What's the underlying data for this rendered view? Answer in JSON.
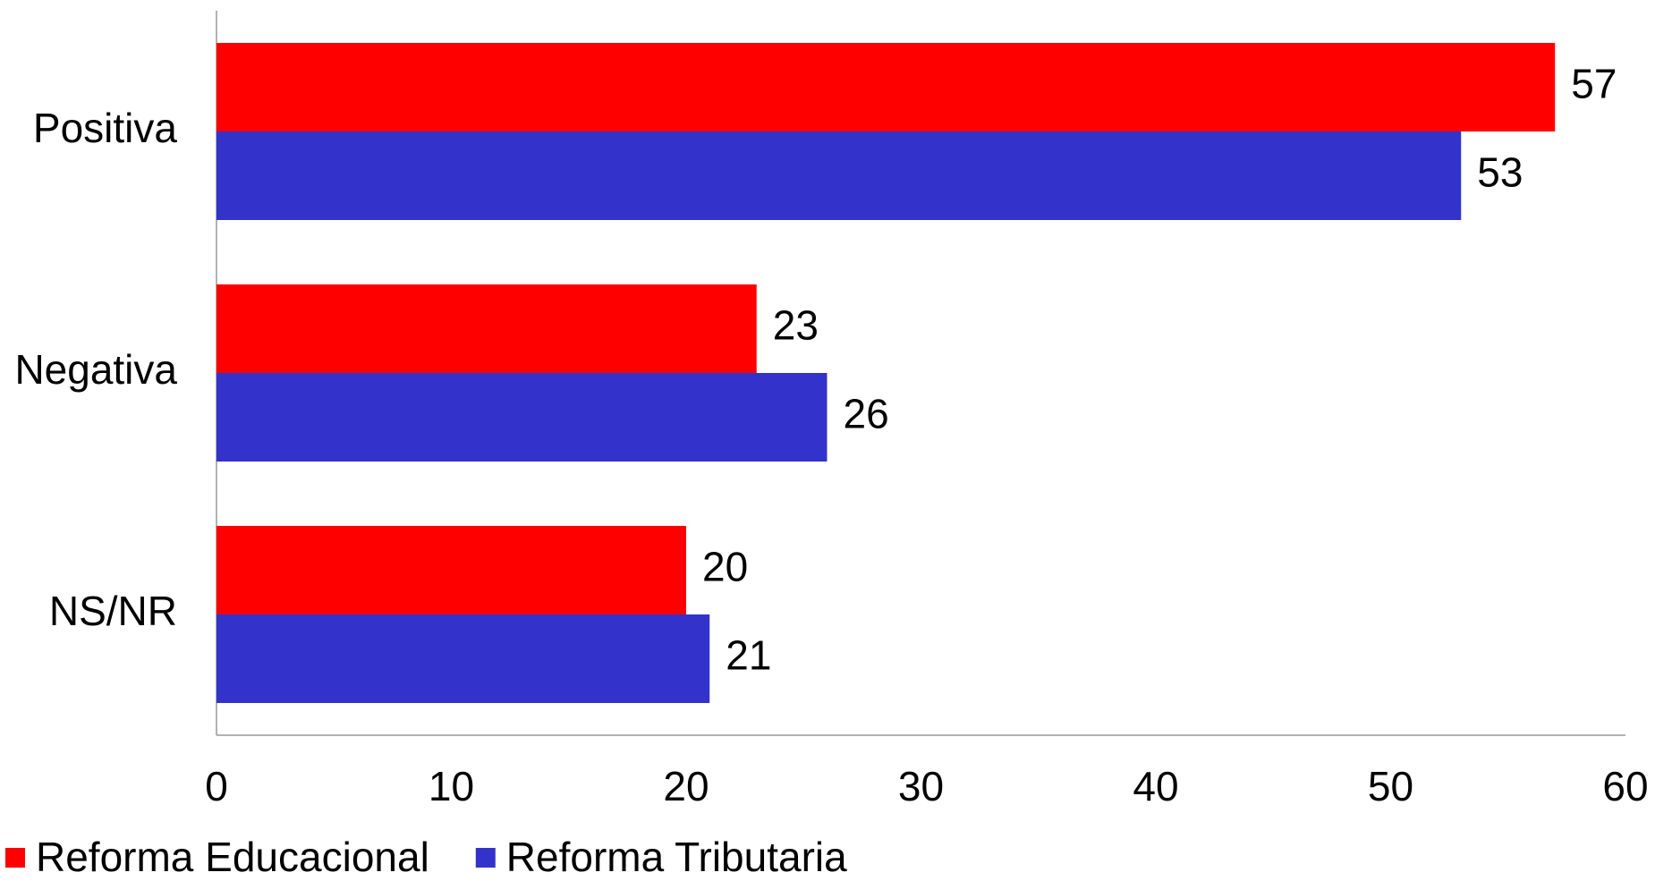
{
  "chart_data": {
    "type": "bar",
    "orientation": "horizontal",
    "categories": [
      "Positiva",
      "Negativa",
      "NS/NR"
    ],
    "series": [
      {
        "name": "Reforma Educacional",
        "color": "#ff0000",
        "values": [
          57,
          23,
          20
        ]
      },
      {
        "name": "Reforma Tributaria",
        "color": "#3333cc",
        "values": [
          53,
          26,
          21
        ]
      }
    ],
    "xlim": [
      0,
      60
    ],
    "xticks": [
      0,
      10,
      20,
      30,
      40,
      50,
      60
    ],
    "grid": false,
    "legend": "bottom-left"
  }
}
